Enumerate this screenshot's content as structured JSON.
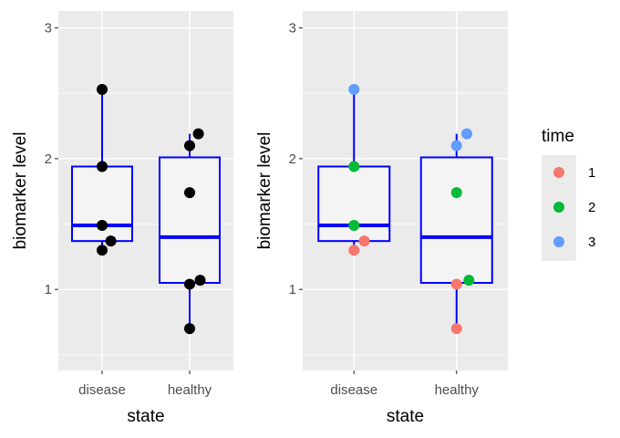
{
  "chart_data": [
    {
      "type": "boxplot",
      "panel": "left",
      "xlabel": "state",
      "ylabel": "biomarker level",
      "categories": [
        "disease",
        "healthy"
      ],
      "y_ticks": [
        1,
        2,
        3
      ],
      "y_tick_labels": [
        "1",
        "2",
        "3"
      ],
      "ylim": [
        0.38,
        3.13
      ],
      "grid": true,
      "boxes": [
        {
          "category": "disease",
          "q1": 1.37,
          "median": 1.49,
          "q3": 1.94,
          "whisker_low": 1.3,
          "whisker_high": 2.53
        },
        {
          "category": "healthy",
          "q1": 1.05,
          "median": 1.4,
          "q3": 2.01,
          "whisker_low": 0.7,
          "whisker_high": 2.19
        }
      ],
      "box_color": "#0000ff",
      "box_fill": "#f4f4f4",
      "points": [
        {
          "category": "disease",
          "y": 2.53,
          "jitter": 0
        },
        {
          "category": "disease",
          "y": 1.94,
          "jitter": 0
        },
        {
          "category": "disease",
          "y": 1.49,
          "jitter": 0
        },
        {
          "category": "disease",
          "y": 1.37,
          "jitter": 0.1
        },
        {
          "category": "disease",
          "y": 1.3,
          "jitter": 0
        },
        {
          "category": "healthy",
          "y": 2.19,
          "jitter": 0.1
        },
        {
          "category": "healthy",
          "y": 2.1,
          "jitter": 0
        },
        {
          "category": "healthy",
          "y": 1.74,
          "jitter": 0
        },
        {
          "category": "healthy",
          "y": 1.07,
          "jitter": 0.12
        },
        {
          "category": "healthy",
          "y": 1.04,
          "jitter": 0
        },
        {
          "category": "healthy",
          "y": 0.7,
          "jitter": 0
        }
      ],
      "point_color": "#000000"
    },
    {
      "type": "boxplot",
      "panel": "right",
      "xlabel": "state",
      "ylabel": "biomarker level",
      "categories": [
        "disease",
        "healthy"
      ],
      "y_ticks": [
        1,
        2,
        3
      ],
      "y_tick_labels": [
        "1",
        "2",
        "3"
      ],
      "ylim": [
        0.38,
        3.13
      ],
      "grid": true,
      "boxes": [
        {
          "category": "disease",
          "q1": 1.37,
          "median": 1.49,
          "q3": 1.94,
          "whisker_low": 1.3,
          "whisker_high": 2.53
        },
        {
          "category": "healthy",
          "q1": 1.05,
          "median": 1.4,
          "q3": 2.01,
          "whisker_low": 0.7,
          "whisker_high": 2.19
        }
      ],
      "box_color": "#0000ff",
      "box_fill": "#f4f4f4",
      "points": [
        {
          "category": "disease",
          "y": 2.53,
          "time": "3",
          "jitter": 0
        },
        {
          "category": "disease",
          "y": 1.94,
          "time": "2",
          "jitter": 0
        },
        {
          "category": "disease",
          "y": 1.49,
          "time": "2",
          "jitter": 0
        },
        {
          "category": "disease",
          "y": 1.37,
          "time": "1",
          "jitter": 0.1
        },
        {
          "category": "disease",
          "y": 1.3,
          "time": "1",
          "jitter": 0
        },
        {
          "category": "healthy",
          "y": 2.19,
          "time": "3",
          "jitter": 0.1
        },
        {
          "category": "healthy",
          "y": 2.1,
          "time": "3",
          "jitter": 0
        },
        {
          "category": "healthy",
          "y": 1.74,
          "time": "2",
          "jitter": 0
        },
        {
          "category": "healthy",
          "y": 1.07,
          "time": "2",
          "jitter": 0.12
        },
        {
          "category": "healthy",
          "y": 1.04,
          "time": "1",
          "jitter": 0
        },
        {
          "category": "healthy",
          "y": 0.7,
          "time": "1",
          "jitter": 0
        }
      ],
      "legend": {
        "title": "time",
        "position": "right",
        "entries": [
          {
            "label": "1",
            "color": "#f8766d"
          },
          {
            "label": "2",
            "color": "#00ba38"
          },
          {
            "label": "3",
            "color": "#619cff"
          }
        ]
      }
    }
  ]
}
